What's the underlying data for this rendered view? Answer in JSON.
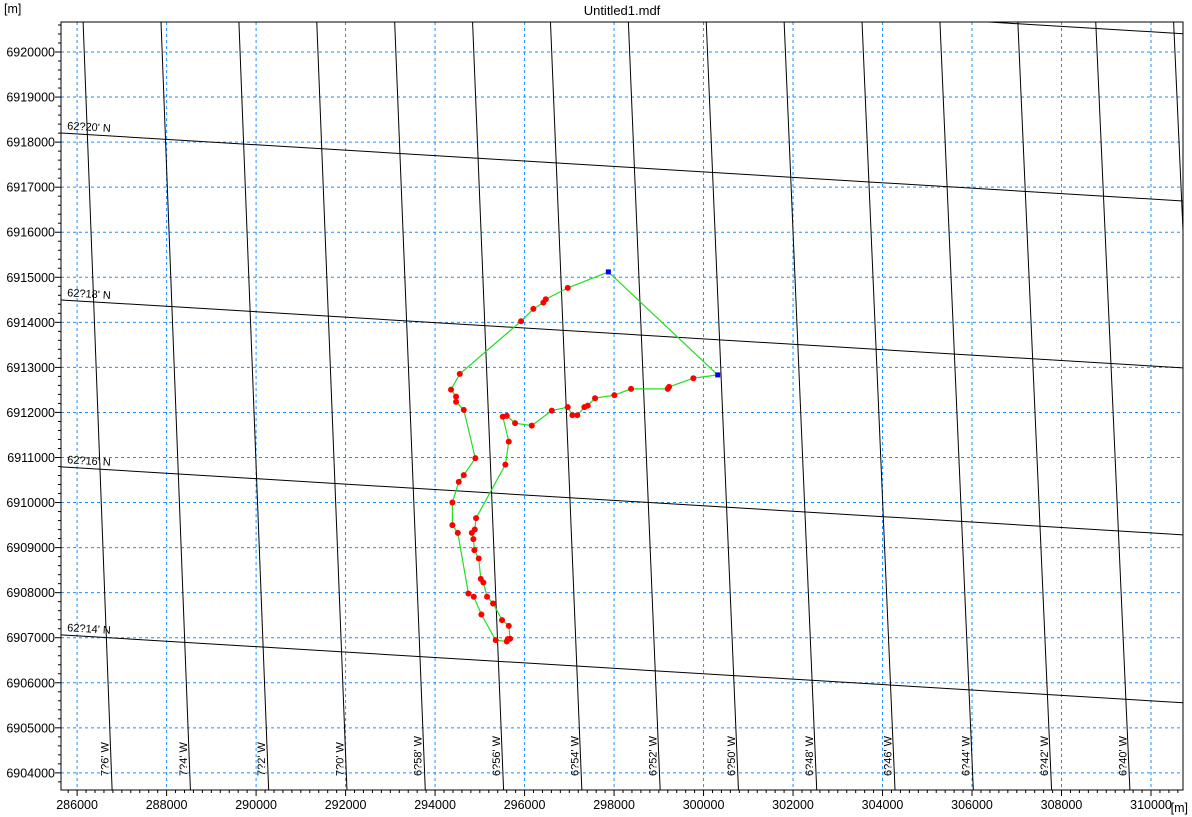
{
  "chart_data": {
    "type": "line",
    "title": "Untitled1.mdf",
    "xlabel": "[m]",
    "ylabel": "[m]",
    "xlim": [
      285640,
      310715
    ],
    "ylim": [
      6903620,
      6920666
    ],
    "grid": true,
    "x_ticks": [
      286000,
      288000,
      290000,
      292000,
      294000,
      296000,
      298000,
      300000,
      302000,
      304000,
      306000,
      308000,
      310000
    ],
    "y_ticks": [
      6904000,
      6905000,
      6906000,
      6907000,
      6908000,
      6909000,
      6910000,
      6911000,
      6912000,
      6913000,
      6914000,
      6915000,
      6916000,
      6917000,
      6918000,
      6919000,
      6920000
    ],
    "colors": {
      "grid": "#1e8fff",
      "graticule": "#000000",
      "track": "#22dd22",
      "points": "#ff0000",
      "endpoints": "#0000ff"
    },
    "graticule": {
      "latitude_lines": [
        {
          "label": "",
          "x": [
            285642,
            310715
          ],
          "y": [
            6921908,
            6920406
          ]
        },
        {
          "label": "62?20' N",
          "x": [
            285642,
            310715
          ],
          "y": [
            6918203,
            6916694
          ]
        },
        {
          "label": "62?18' N",
          "x": [
            285642,
            310715
          ],
          "y": [
            6914497,
            6912989
          ]
        },
        {
          "label": "62?16' N",
          "x": [
            285642,
            310715
          ],
          "y": [
            6910792,
            6909283
          ]
        },
        {
          "label": "62?14' N",
          "x": [
            285642,
            310715
          ],
          "y": [
            6907064,
            6905556
          ]
        }
      ],
      "longitude_lines": [
        {
          "label": "7?6' W",
          "x": [
            286134,
            286782
          ],
          "y": [
            6920666,
            6903625
          ]
        },
        {
          "label": "7?4' W",
          "x": [
            287875,
            288532
          ],
          "y": [
            6920666,
            6903625
          ]
        },
        {
          "label": "7?2' W",
          "x": [
            289616,
            290281
          ],
          "y": [
            6920666,
            6903625
          ]
        },
        {
          "label": "7?0' W",
          "x": [
            291356,
            292031
          ],
          "y": [
            6920666,
            6903625
          ]
        },
        {
          "label": "6?58' W",
          "x": [
            293097,
            293781
          ],
          "y": [
            6920666,
            6903625
          ]
        },
        {
          "label": "6?56' W",
          "x": [
            294838,
            295531
          ],
          "y": [
            6920666,
            6903625
          ]
        },
        {
          "label": "6?54' W",
          "x": [
            296579,
            297280
          ],
          "y": [
            6920666,
            6903625
          ]
        },
        {
          "label": "6?52' W",
          "x": [
            298320,
            299030
          ],
          "y": [
            6920666,
            6903625
          ]
        },
        {
          "label": "6?50' W",
          "x": [
            300060,
            300780
          ],
          "y": [
            6920666,
            6903625
          ]
        },
        {
          "label": "6?48' W",
          "x": [
            301801,
            302529
          ],
          "y": [
            6920666,
            6903625
          ]
        },
        {
          "label": "6?46' W",
          "x": [
            303542,
            304279
          ],
          "y": [
            6920666,
            6903625
          ]
        },
        {
          "label": "6?44' W",
          "x": [
            305283,
            306029
          ],
          "y": [
            6920666,
            6903625
          ]
        },
        {
          "label": "6?42' W",
          "x": [
            307024,
            307778
          ],
          "y": [
            6920666,
            6903625
          ]
        },
        {
          "label": "6?40' W",
          "x": [
            308765,
            309528
          ],
          "y": [
            6920666,
            6903625
          ]
        },
        {
          "label": "",
          "x": [
            310505,
            311278
          ],
          "y": [
            6920666,
            6903625
          ]
        }
      ]
    },
    "endpoints": [
      [
        297873,
        6915119
      ],
      [
        300317,
        6912833
      ]
    ],
    "track": [
      [
        297873,
        6915119
      ],
      [
        296965,
        6914764
      ],
      [
        296474,
        6914513
      ],
      [
        296420,
        6914437
      ],
      [
        296197,
        6914298
      ],
      [
        295922,
        6914025
      ],
      [
        294552,
        6912855
      ],
      [
        294357,
        6912507
      ],
      [
        294469,
        6912352
      ],
      [
        294469,
        6912234
      ],
      [
        294641,
        6912057
      ],
      [
        294900,
        6910985
      ],
      [
        294641,
        6910608
      ],
      [
        294529,
        6910459
      ],
      [
        294387,
        6910000
      ],
      [
        294387,
        6909498
      ],
      [
        294507,
        6909328
      ],
      [
        294744,
        6907981
      ],
      [
        294865,
        6907908
      ],
      [
        295035,
        6907515
      ],
      [
        295356,
        6906947
      ],
      [
        295602,
        6906916
      ],
      [
        295624,
        6906969
      ],
      [
        295676,
        6906976
      ],
      [
        295647,
        6907264
      ],
      [
        295497,
        6907390
      ],
      [
        295296,
        6907759
      ],
      [
        295162,
        6907908
      ],
      [
        295079,
        6908225
      ],
      [
        295021,
        6908307
      ],
      [
        294976,
        6908757
      ],
      [
        294878,
        6908944
      ],
      [
        294856,
        6909188
      ],
      [
        294820,
        6909328
      ],
      [
        294887,
        6909401
      ],
      [
        294916,
        6909654
      ],
      [
        295571,
        6910843
      ],
      [
        295647,
        6911353
      ],
      [
        295513,
        6911908
      ],
      [
        295602,
        6911924
      ],
      [
        295788,
        6911762
      ],
      [
        296161,
        6911708
      ],
      [
        296608,
        6912041
      ],
      [
        296965,
        6912117
      ],
      [
        297068,
        6911939
      ],
      [
        297180,
        6911939
      ],
      [
        297336,
        6912117
      ],
      [
        297412,
        6912152
      ],
      [
        297575,
        6912316
      ],
      [
        298006,
        6912383
      ],
      [
        298380,
        6912523
      ],
      [
        299200,
        6912523
      ],
      [
        299229,
        6912567
      ],
      [
        299772,
        6912760
      ],
      [
        300317,
        6912833
      ],
      [
        297873,
        6915119
      ]
    ]
  }
}
